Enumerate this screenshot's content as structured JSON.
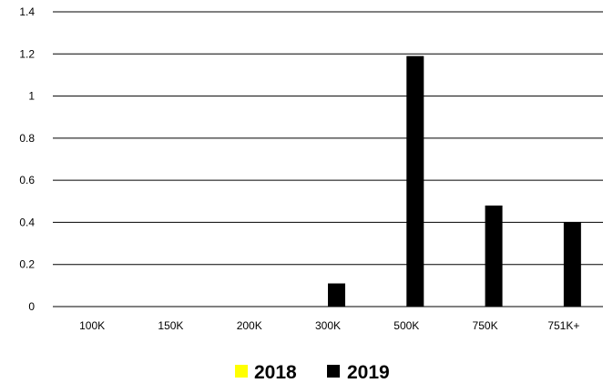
{
  "chart_data": {
    "type": "bar",
    "categories": [
      "100K",
      "150K",
      "200K",
      "300K",
      "500K",
      "750K",
      "751K+"
    ],
    "series": [
      {
        "name": "2018",
        "color": "#ffff00",
        "values": [
          0,
          0,
          0,
          0,
          0,
          0,
          0
        ]
      },
      {
        "name": "2019",
        "color": "#000000",
        "values": [
          0,
          0,
          0,
          0.11,
          1.19,
          0.48,
          0.4
        ]
      }
    ],
    "y_ticks": [
      "0",
      "0.2",
      "0.4",
      "0.6",
      "0.8",
      "1",
      "1.2",
      "1.4"
    ],
    "ylim": [
      0,
      1.4
    ],
    "grid": true,
    "legend_position": "bottom"
  }
}
